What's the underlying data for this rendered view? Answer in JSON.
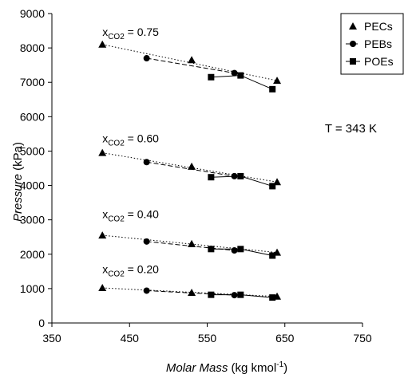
{
  "chart_data": {
    "type": "scatter",
    "xlabel": "Molar Mass",
    "xlabel_units": "(kg kmol",
    "xlabel_units_exp": "-1",
    "xlabel_units_end": ")",
    "ylabel": "Pressure",
    "ylabel_units": "(kPa)",
    "xlim": [
      350,
      750
    ],
    "ylim": [
      0,
      9000
    ],
    "xticks": [
      350,
      450,
      550,
      650,
      750
    ],
    "yticks": [
      0,
      1000,
      2000,
      3000,
      4000,
      5000,
      6000,
      7000,
      8000,
      9000
    ],
    "grid": false,
    "legend_position": "top-right",
    "annotation": "T = 343 K",
    "composition_labels": [
      {
        "prefix": "x",
        "subscript": "CO2",
        "text": " = 0.75",
        "at": [
          415,
          8350
        ]
      },
      {
        "prefix": "x",
        "subscript": "CO2",
        "text": " = 0.60",
        "at": [
          415,
          5250
        ]
      },
      {
        "prefix": "x",
        "subscript": "CO2",
        "text": " = 0.40",
        "at": [
          415,
          3050
        ]
      },
      {
        "prefix": "x",
        "subscript": "CO2",
        "text": " = 0.20",
        "at": [
          415,
          1450
        ]
      }
    ],
    "series": [
      {
        "name": "PECs",
        "marker": "triangle",
        "line": "none",
        "groups": [
          [
            [
              415,
              8100
            ],
            [
              530,
              7650
            ],
            [
              640,
              7050
            ]
          ],
          [
            [
              415,
              4950
            ],
            [
              530,
              4550
            ],
            [
              640,
              4100
            ]
          ],
          [
            [
              415,
              2550
            ],
            [
              530,
              2300
            ],
            [
              640,
              2050
            ]
          ],
          [
            [
              415,
              1020
            ],
            [
              530,
              880
            ],
            [
              640,
              770
            ]
          ]
        ]
      },
      {
        "name": "PEBs",
        "marker": "circle",
        "line": "dashed",
        "groups": [
          [
            [
              472,
              7700
            ],
            [
              585,
              7270
            ]
          ],
          [
            [
              472,
              4680
            ],
            [
              585,
              4270
            ]
          ],
          [
            [
              472,
              2370
            ],
            [
              585,
              2110
            ]
          ],
          [
            [
              472,
              940
            ],
            [
              585,
              810
            ]
          ]
        ]
      },
      {
        "name": "POEs",
        "marker": "square",
        "line": "solid",
        "groups": [
          [
            [
              555,
              7150
            ],
            [
              593,
              7200
            ],
            [
              634,
              6800
            ]
          ],
          [
            [
              555,
              4240
            ],
            [
              593,
              4270
            ],
            [
              634,
              3980
            ]
          ],
          [
            [
              555,
              2150
            ],
            [
              593,
              2150
            ],
            [
              634,
              1960
            ]
          ],
          [
            [
              555,
              820
            ],
            [
              593,
              820
            ],
            [
              634,
              740
            ]
          ]
        ]
      }
    ],
    "trendlines": [
      [
        [
          415,
          8100
        ],
        [
          640,
          7050
        ]
      ],
      [
        [
          415,
          4950
        ],
        [
          640,
          4100
        ]
      ],
      [
        [
          415,
          2550
        ],
        [
          640,
          2050
        ]
      ],
      [
        [
          415,
          1020
        ],
        [
          640,
          770
        ]
      ]
    ]
  }
}
